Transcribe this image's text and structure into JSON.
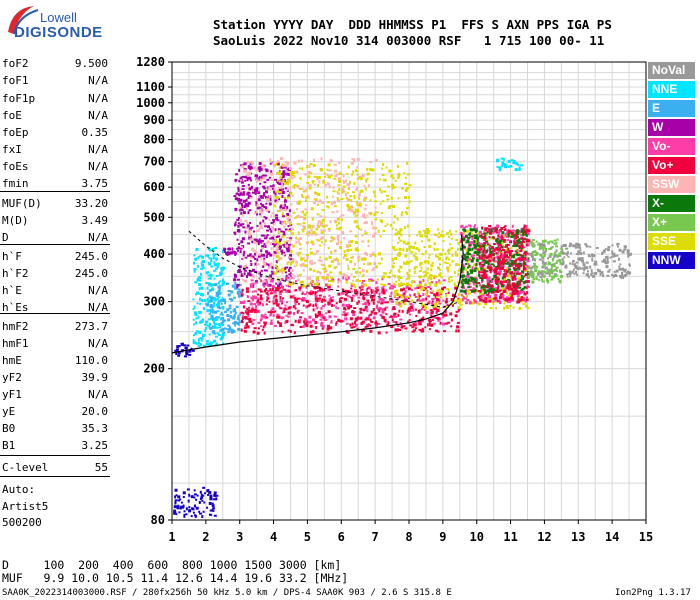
{
  "logo": {
    "top": "Lowell",
    "bottom": "DIGISONDE"
  },
  "header": {
    "line1": "Station YYYY DAY  DDD HHMMSS P1  FFS S AXN PPS IGA PS",
    "line2": "SaoLuis 2022 Nov10 314 003000 RSF   1 715 100 00- 11"
  },
  "params": [
    {
      "name": "foF2",
      "value": "9.500"
    },
    {
      "name": "foF1",
      "value": "N/A"
    },
    {
      "name": "foF1p",
      "value": "N/A"
    },
    {
      "name": "foE",
      "value": "N/A"
    },
    {
      "name": "foEp",
      "value": "0.35"
    },
    {
      "name": "fxI",
      "value": "N/A"
    },
    {
      "name": "foEs",
      "value": "N/A"
    },
    {
      "name": "fmin",
      "value": "3.75"
    },
    {
      "name": "MUF(D)",
      "value": "33.20"
    },
    {
      "name": "M(D)",
      "value": "3.49"
    },
    {
      "name": "D",
      "value": "N/A"
    },
    {
      "name": "h`F",
      "value": "245.0"
    },
    {
      "name": "h`F2",
      "value": "245.0"
    },
    {
      "name": "h`E",
      "value": "N/A"
    },
    {
      "name": "h`Es",
      "value": "N/A"
    },
    {
      "name": "hmF2",
      "value": "273.7"
    },
    {
      "name": "hmF1",
      "value": "N/A"
    },
    {
      "name": "hmE",
      "value": "110.0"
    },
    {
      "name": "yF2",
      "value": "39.9"
    },
    {
      "name": "yF1",
      "value": "N/A"
    },
    {
      "name": "yE",
      "value": "20.0"
    },
    {
      "name": "B0",
      "value": "35.3"
    },
    {
      "name": "B1",
      "value": "3.25"
    },
    {
      "name": "C-level",
      "value": "55"
    }
  ],
  "auto": {
    "line1": "Auto:",
    "line2": "Artist5",
    "line3": "500200"
  },
  "legend": [
    {
      "label": "NoVal",
      "color": "#999999"
    },
    {
      "label": "NNE",
      "color": "#00e5ff"
    },
    {
      "label": "E",
      "color": "#3ab0f0"
    },
    {
      "label": "W",
      "color": "#a800a8"
    },
    {
      "label": "Vo-",
      "color": "#ff3ca8"
    },
    {
      "label": "Vo+",
      "color": "#f0003c"
    },
    {
      "label": "SSW",
      "color": "#ffb4b4"
    },
    {
      "label": "X-",
      "color": "#0a780a"
    },
    {
      "label": "X+",
      "color": "#78c850"
    },
    {
      "label": "SSE",
      "color": "#dcdc00"
    },
    {
      "label": "NNW",
      "color": "#1400c8"
    }
  ],
  "footer": {
    "d_line": "D     100  200  400  600  800 1000 1500 3000 [km]",
    "muf_line": "MUF   9.9 10.0 10.5 11.4 12.6 14.4 19.6 33.2 [MHz]",
    "file_line": "SAA0K_2022314003000.RSF / 280fx256h 50 kHz 5.0 km / DPS-4 SAA0K 903 / 2.6 S 315.8 E",
    "version": "Ion2Png 1.3.17"
  },
  "chart_data": {
    "type": "scatter",
    "title": "",
    "xlabel": "",
    "ylabel": "",
    "xlim": [
      1,
      15
    ],
    "ylim": [
      80,
      1280
    ],
    "x_ticks": [
      1,
      2,
      3,
      4,
      5,
      6,
      7,
      8,
      9,
      10,
      11,
      12,
      13,
      14,
      15
    ],
    "y_ticks": [
      80,
      200,
      300,
      400,
      500,
      600,
      700,
      800,
      900,
      1000,
      1100,
      1280
    ],
    "y_scale": "log",
    "grid": true,
    "trace_o": [
      [
        1,
        220
      ],
      [
        1.5,
        224
      ],
      [
        2,
        228
      ],
      [
        3,
        235
      ],
      [
        4,
        240
      ],
      [
        5,
        245
      ],
      [
        6,
        250
      ],
      [
        7,
        256
      ],
      [
        8,
        264
      ],
      [
        8.5,
        270
      ],
      [
        9,
        280
      ],
      [
        9.3,
        300
      ],
      [
        9.5,
        340
      ],
      [
        9.6,
        400
      ],
      [
        9.55,
        450
      ]
    ],
    "trace_x": [
      [
        1.5,
        460
      ],
      [
        2,
        420
      ],
      [
        2.5,
        390
      ],
      [
        3,
        370
      ],
      [
        4,
        345
      ],
      [
        5,
        330
      ],
      [
        6,
        320
      ],
      [
        7,
        310
      ],
      [
        8,
        300
      ],
      [
        8.5,
        295
      ],
      [
        9,
        290
      ],
      [
        9.5,
        300
      ]
    ],
    "echo_regions": [
      {
        "x": [
          1.0,
          1.6
        ],
        "y": [
          215,
          235
        ],
        "color": "#1400c8"
      },
      {
        "x": [
          1.6,
          2.5
        ],
        "y": [
          230,
          420
        ],
        "color": "#00e5ff"
      },
      {
        "x": [
          2.0,
          3.0
        ],
        "y": [
          250,
          340
        ],
        "color": "#3ab0f0"
      },
      {
        "x": [
          2.8,
          4.5
        ],
        "y": [
          330,
          700
        ],
        "color": "#a800a8"
      },
      {
        "x": [
          3.0,
          9.0
        ],
        "y": [
          260,
          350
        ],
        "color": "#ff3ca8"
      },
      {
        "x": [
          3.0,
          9.5
        ],
        "y": [
          250,
          330
        ],
        "color": "#f0003c"
      },
      {
        "x": [
          3.0,
          7.0
        ],
        "y": [
          340,
          720
        ],
        "color": "#ffb4b4"
      },
      {
        "x": [
          4.0,
          8.0
        ],
        "y": [
          330,
          700
        ],
        "color": "#dcdc00"
      },
      {
        "x": [
          7.5,
          11.5
        ],
        "y": [
          290,
          470
        ],
        "color": "#dcdc00"
      },
      {
        "x": [
          9.5,
          11.5
        ],
        "y": [
          300,
          480
        ],
        "color": "#ff3ca8"
      },
      {
        "x": [
          9.5,
          11.5
        ],
        "y": [
          320,
          470
        ],
        "color": "#0a780a"
      },
      {
        "x": [
          10.0,
          11.5
        ],
        "y": [
          300,
          480
        ],
        "color": "#f0003c"
      },
      {
        "x": [
          11.5,
          14.5
        ],
        "y": [
          350,
          430
        ],
        "color": "#999999"
      },
      {
        "x": [
          11.5,
          12.5
        ],
        "y": [
          340,
          440
        ],
        "color": "#78c850"
      },
      {
        "x": [
          10.5,
          11.3
        ],
        "y": [
          670,
          720
        ],
        "color": "#00e5ff"
      },
      {
        "x": [
          1.0,
          2.3
        ],
        "y": [
          82,
          98
        ],
        "color": "#1400c8"
      },
      {
        "x": [
          2.5,
          3.0
        ],
        "y": [
          400,
          420
        ],
        "color": "#a800a8"
      }
    ]
  }
}
